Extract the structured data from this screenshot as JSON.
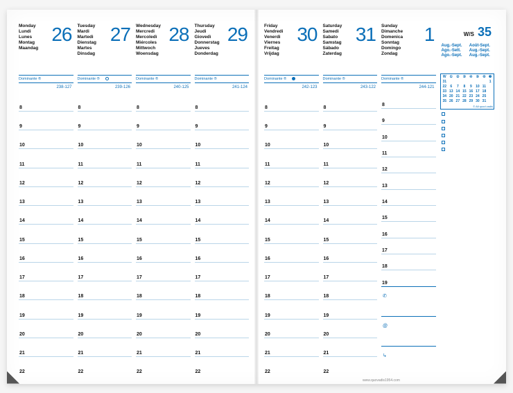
{
  "colors": {
    "accent": "#0b6fb8",
    "rule": "#b9d5e8",
    "text": "#111111",
    "bg": "#ffffff"
  },
  "typography": {
    "daynum_fontsize": 28,
    "daynames_fontsize": 6.5,
    "hour_fontsize": 7
  },
  "hours": [
    8,
    9,
    10,
    11,
    12,
    13,
    14,
    15,
    16,
    17,
    18,
    19,
    20,
    21,
    22
  ],
  "dominante_label": "Dominante ®",
  "week_label_prefix": "W/S",
  "week_number": 35,
  "month_labels": [
    "Aug.-Sept.",
    "Août-Sept.",
    "Ago.-Sett.",
    "Aug.-Sept.",
    "Ago.-Sept.",
    "Aug.-Sept."
  ],
  "footer": "www.quovadis1954.com",
  "minical": {
    "header": [
      "W",
      "①",
      "②",
      "③",
      "④",
      "⑤",
      "⑥",
      "❼"
    ],
    "rows": [
      [
        "31",
        "",
        "",
        "",
        "",
        "",
        "",
        "1"
      ],
      [
        "22",
        "6",
        "7",
        "8",
        "9",
        "10",
        "11",
        ""
      ],
      [
        "33",
        "13",
        "14",
        "15",
        "16",
        "17",
        "18",
        ""
      ],
      [
        "34",
        "20",
        "21",
        "22",
        "23",
        "24",
        "25",
        ""
      ],
      [
        "35",
        "26",
        "27",
        "28",
        "29",
        "30",
        "31",
        ""
      ]
    ],
    "footnote": "© All quod vadis"
  },
  "checklist_count": 6,
  "note_icons": [
    "phone",
    "at",
    "arrow"
  ],
  "left": [
    {
      "num": 26,
      "names": [
        "Monday",
        "Lundi",
        "Lunes",
        "Montag",
        "Maandag"
      ],
      "julian": "238-127",
      "moon": null
    },
    {
      "num": 27,
      "names": [
        "Tuesday",
        "Mardi",
        "Martedì",
        "Dienstag",
        "Martes",
        "Dinsdag"
      ],
      "julian": "239-126",
      "moon": "ring"
    },
    {
      "num": 28,
      "names": [
        "Wednesday",
        "Mercredi",
        "Mercoledì",
        "Miércoles",
        "Mittwoch",
        "Woensdag"
      ],
      "julian": "240-125",
      "moon": null
    },
    {
      "num": 29,
      "names": [
        "Thursday",
        "Jeudi",
        "Giovedì",
        "Donnerstag",
        "Jueves",
        "Donderdag"
      ],
      "julian": "241-124",
      "moon": null
    }
  ],
  "right": [
    {
      "num": 30,
      "names": [
        "Friday",
        "Vendredi",
        "Venerdì",
        "Viernes",
        "Freitag",
        "Vrijdag"
      ],
      "julian": "242-123",
      "moon": "full"
    },
    {
      "num": 31,
      "names": [
        "Saturday",
        "Samedi",
        "Sabato",
        "Samstag",
        "Sábado",
        "Zaterdag"
      ],
      "julian": "243-122",
      "moon": null
    },
    {
      "num": 1,
      "names": [
        "Sunday",
        "Dimanche",
        "Domenica",
        "Sonntag",
        "Domingo",
        "Zondag"
      ],
      "julian": "244-121",
      "moon": null
    }
  ]
}
